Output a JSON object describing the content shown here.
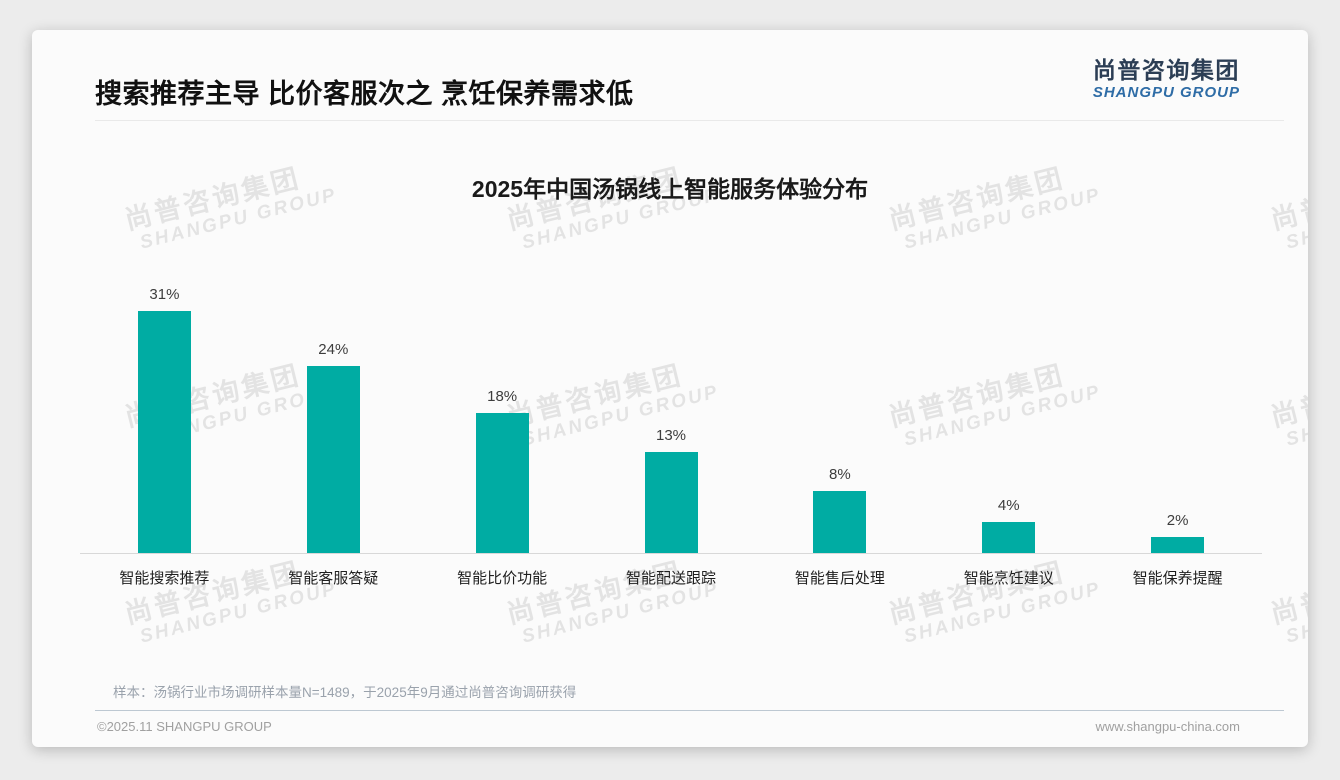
{
  "header": {
    "title": "搜索推荐主导 比价客服次之 烹饪保养需求低"
  },
  "brand": {
    "name_cn": "尚普咨询集团",
    "name_en": "SHANGPU GROUP",
    "color_cn": "#2c3e55",
    "color_en": "#2e6ca6"
  },
  "watermark": {
    "line1": "尚普咨询集团",
    "line2": "SHANGPU GROUP"
  },
  "chart_data": {
    "type": "bar",
    "title": "2025年中国汤锅线上智能服务体验分布",
    "categories": [
      "智能搜索推荐",
      "智能客服答疑",
      "智能比价功能",
      "智能配送跟踪",
      "智能售后处理",
      "智能烹饪建议",
      "智能保养提醒"
    ],
    "values": [
      31,
      24,
      18,
      13,
      8,
      4,
      2
    ],
    "value_labels": [
      "31%",
      "24%",
      "18%",
      "13%",
      "8%",
      "4%",
      "2%"
    ],
    "unit": "%",
    "bar_color": "#00ACA3",
    "xlabel": "",
    "ylabel": "",
    "ylim": [
      0,
      33
    ],
    "grid": false,
    "legend": "none",
    "value_labels_position": "above-bars"
  },
  "footnote": "样本：汤锅行业市场调研样本量N=1489，于2025年9月通过尚普咨询调研获得",
  "footer": {
    "left": "©2025.11 SHANGPU GROUP",
    "right": "www.shangpu-china.com"
  }
}
